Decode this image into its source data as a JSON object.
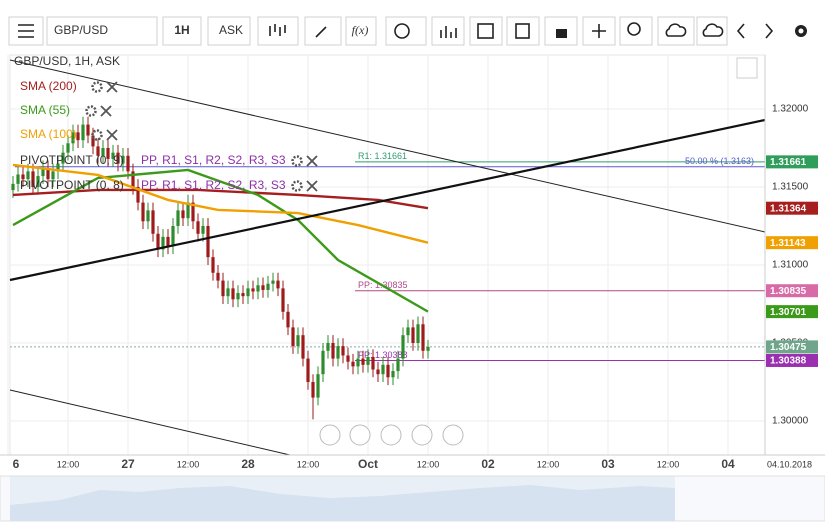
{
  "toolbar": {
    "symbol": "GBP/USD",
    "interval": "1H",
    "side": "ASK",
    "fx": "f(x)"
  },
  "chart_data": {
    "type": "candlestick",
    "title": "GBP/USD, 1H, ASK",
    "x": [
      1,
      2,
      3,
      4,
      5,
      6,
      7,
      8,
      9,
      10,
      11,
      12,
      13,
      14,
      15,
      16,
      17,
      18,
      19,
      20,
      21,
      22,
      23,
      24,
      25,
      26,
      27,
      28,
      29,
      30,
      31,
      32,
      33,
      34,
      35,
      36,
      37,
      38,
      39,
      40,
      41,
      42,
      43,
      44,
      45,
      46,
      47,
      48,
      49,
      50,
      51,
      52,
      53,
      54,
      55,
      56,
      57,
      58,
      59,
      60,
      61,
      62,
      63,
      64,
      65,
      66,
      67,
      68,
      69,
      70,
      71,
      72,
      73,
      74,
      75,
      76,
      77,
      78,
      79,
      80,
      81,
      82,
      83,
      84
    ],
    "candles": [
      [
        1.3148,
        1.3157,
        1.3143,
        1.3152
      ],
      [
        1.3152,
        1.3163,
        1.3147,
        1.3158
      ],
      [
        1.3158,
        1.3163,
        1.315,
        1.3155
      ],
      [
        1.3155,
        1.3165,
        1.315,
        1.316
      ],
      [
        1.316,
        1.3165,
        1.3145,
        1.315
      ],
      [
        1.315,
        1.3162,
        1.3145,
        1.3157
      ],
      [
        1.3157,
        1.3167,
        1.3152,
        1.3162
      ],
      [
        1.3162,
        1.3167,
        1.315,
        1.3155
      ],
      [
        1.3155,
        1.3165,
        1.315,
        1.316
      ],
      [
        1.316,
        1.317,
        1.3155,
        1.3165
      ],
      [
        1.3165,
        1.3177,
        1.316,
        1.3172
      ],
      [
        1.3172,
        1.3183,
        1.3167,
        1.3178
      ],
      [
        1.3178,
        1.319,
        1.3173,
        1.3185
      ],
      [
        1.3185,
        1.319,
        1.3175,
        1.318
      ],
      [
        1.318,
        1.3195,
        1.3175,
        1.319
      ],
      [
        1.319,
        1.3195,
        1.3178,
        1.3183
      ],
      [
        1.3183,
        1.3188,
        1.3171,
        1.3176
      ],
      [
        1.3176,
        1.3181,
        1.3165,
        1.317
      ],
      [
        1.317,
        1.318,
        1.3165,
        1.3175
      ],
      [
        1.3175,
        1.318,
        1.3163,
        1.3168
      ],
      [
        1.3168,
        1.3177,
        1.3163,
        1.3172
      ],
      [
        1.3172,
        1.3177,
        1.316,
        1.3165
      ],
      [
        1.3165,
        1.3175,
        1.316,
        1.317
      ],
      [
        1.317,
        1.3175,
        1.3155,
        1.316
      ],
      [
        1.316,
        1.3165,
        1.3145,
        1.315
      ],
      [
        1.315,
        1.3155,
        1.3135,
        1.314
      ],
      [
        1.314,
        1.3145,
        1.3123,
        1.3128
      ],
      [
        1.3128,
        1.314,
        1.3123,
        1.3135
      ],
      [
        1.3135,
        1.314,
        1.3115,
        1.312
      ],
      [
        1.312,
        1.3125,
        1.3105,
        1.311
      ],
      [
        1.311,
        1.3123,
        1.3105,
        1.3118
      ],
      [
        1.3118,
        1.3123,
        1.3107,
        1.3112
      ],
      [
        1.3112,
        1.313,
        1.3107,
        1.3125
      ],
      [
        1.3125,
        1.314,
        1.312,
        1.3135
      ],
      [
        1.3135,
        1.314,
        1.3125,
        1.313
      ],
      [
        1.313,
        1.3145,
        1.3125,
        1.314
      ],
      [
        1.314,
        1.3145,
        1.3123,
        1.3128
      ],
      [
        1.3128,
        1.3133,
        1.3115,
        1.312
      ],
      [
        1.312,
        1.313,
        1.3115,
        1.3125
      ],
      [
        1.3125,
        1.313,
        1.31,
        1.3105
      ],
      [
        1.3105,
        1.311,
        1.309,
        1.3095
      ],
      [
        1.3095,
        1.31,
        1.3085,
        1.309
      ],
      [
        1.309,
        1.3095,
        1.3075,
        1.308
      ],
      [
        1.308,
        1.309,
        1.3075,
        1.3085
      ],
      [
        1.3085,
        1.309,
        1.3073,
        1.3078
      ],
      [
        1.3078,
        1.3087,
        1.3073,
        1.3082
      ],
      [
        1.3082,
        1.3087,
        1.3075,
        1.308
      ],
      [
        1.308,
        1.309,
        1.3075,
        1.3085
      ],
      [
        1.3085,
        1.309,
        1.3078,
        1.3083
      ],
      [
        1.3083,
        1.3092,
        1.3078,
        1.3087
      ],
      [
        1.3087,
        1.3092,
        1.3079,
        1.3084
      ],
      [
        1.3084,
        1.3093,
        1.3079,
        1.3088
      ],
      [
        1.3088,
        1.3095,
        1.3083,
        1.309
      ],
      [
        1.309,
        1.3095,
        1.308,
        1.3085
      ],
      [
        1.3085,
        1.309,
        1.3065,
        1.307
      ],
      [
        1.307,
        1.3075,
        1.3055,
        1.306
      ],
      [
        1.306,
        1.3065,
        1.3043,
        1.3048
      ],
      [
        1.3048,
        1.306,
        1.3043,
        1.3055
      ],
      [
        1.3055,
        1.306,
        1.3035,
        1.304
      ],
      [
        1.304,
        1.3045,
        1.302,
        1.3025
      ],
      [
        1.3025,
        1.303,
        1.3001,
        1.3015
      ],
      [
        1.3015,
        1.3035,
        1.301,
        1.303
      ],
      [
        1.303,
        1.305,
        1.3025,
        1.3045
      ],
      [
        1.3045,
        1.3055,
        1.304,
        1.305
      ],
      [
        1.305,
        1.3055,
        1.3035,
        1.304
      ],
      [
        1.304,
        1.3053,
        1.3035,
        1.3048
      ],
      [
        1.3048,
        1.3053,
        1.3037,
        1.3042
      ],
      [
        1.3042,
        1.3047,
        1.3033,
        1.3038
      ],
      [
        1.3038,
        1.3043,
        1.303,
        1.3035
      ],
      [
        1.3035,
        1.3045,
        1.303,
        1.304
      ],
      [
        1.304,
        1.3045,
        1.3031,
        1.3036
      ],
      [
        1.3036,
        1.3046,
        1.3031,
        1.3041
      ],
      [
        1.3041,
        1.3046,
        1.3028,
        1.3033
      ],
      [
        1.3033,
        1.3038,
        1.3025,
        1.303
      ],
      [
        1.303,
        1.3041,
        1.3025,
        1.3036
      ],
      [
        1.3036,
        1.3041,
        1.3023,
        1.3028
      ],
      [
        1.3028,
        1.3037,
        1.3023,
        1.3032
      ],
      [
        1.3032,
        1.3045,
        1.3027,
        1.304
      ],
      [
        1.304,
        1.306,
        1.3035,
        1.3055
      ],
      [
        1.3055,
        1.3065,
        1.305,
        1.306
      ],
      [
        1.306,
        1.3065,
        1.3045,
        1.305
      ],
      [
        1.305,
        1.3067,
        1.3045,
        1.3062
      ],
      [
        1.3062,
        1.3067,
        1.304,
        1.3045
      ],
      [
        1.3045,
        1.3052,
        1.304,
        1.30475
      ]
    ],
    "up_color": "#2e8b2e",
    "down_color": "#9e1b1b",
    "series": [
      {
        "name": "SMA (200)",
        "color": "#a51f1f",
        "x": [
          1,
          18,
          38,
          58,
          74,
          84
        ],
        "values": [
          1.31449,
          1.31481,
          1.31481,
          1.31449,
          1.31417,
          1.31364
        ]
      },
      {
        "name": "SMA (55)",
        "color": "#3c9a1a",
        "x": [
          1,
          18,
          36,
          50,
          58,
          66,
          84
        ],
        "values": [
          1.31256,
          1.31558,
          1.31609,
          1.31449,
          1.31288,
          1.31032,
          1.30701
        ]
      },
      {
        "name": "SMA (100)",
        "color": "#f0a000",
        "x": [
          1,
          18,
          32,
          42,
          58,
          70,
          84
        ],
        "values": [
          1.31641,
          1.31577,
          1.31417,
          1.31353,
          1.31333,
          1.31256,
          1.31143
        ]
      }
    ],
    "pivot_legends": [
      {
        "name": "PIVOTPOINT (0, 9)",
        "levels": "PP, R1, S1, R2, S2, R3, S3"
      },
      {
        "name": "PIVOTPOINT (0, 8)",
        "levels": "PP, R1, S1, R2, S2, R3, S3"
      }
    ],
    "levels": [
      {
        "label": "R1: 1.31661",
        "value": 1.31661,
        "color": "#2e9e6e"
      },
      {
        "label": "50.00 % (1.3163)",
        "value": 1.3163,
        "color": "#5a5ad0"
      },
      {
        "label": "PP: 1.30835",
        "value": 1.30835,
        "color": "#b04a8a"
      },
      {
        "label": "PP: 1.30388",
        "value": 1.30388,
        "color": "#9a2fb0"
      }
    ],
    "price_tags": [
      {
        "value": 1.31661,
        "color": "#2e9e5a"
      },
      {
        "value": 1.31364,
        "color": "#a51f1f"
      },
      {
        "value": 1.31143,
        "color": "#f0a000"
      },
      {
        "value": 1.30835,
        "color": "#d86aa8"
      },
      {
        "value": 1.30701,
        "color": "#3c9a1a"
      },
      {
        "value": 1.30475,
        "color": "#6fa58a"
      },
      {
        "value": 1.30388,
        "color": "#9a2fb0"
      }
    ],
    "current_price": 1.30475,
    "xlim": [
      0.4,
      151.4
    ],
    "ylim": [
      1.29782,
      1.32346
    ],
    "xticks": [
      {
        "value": 0,
        "label": "6"
      },
      {
        "value": 12,
        "label": "12:00"
      },
      {
        "value": 24,
        "label": "27"
      },
      {
        "value": 36,
        "label": "12:00"
      },
      {
        "value": 48,
        "label": "28"
      },
      {
        "value": 60,
        "label": "12:00"
      },
      {
        "value": 72,
        "label": "Oct"
      },
      {
        "value": 84,
        "label": "12:00"
      },
      {
        "value": 96,
        "label": "02"
      },
      {
        "value": 108,
        "label": "12:00"
      },
      {
        "value": 120,
        "label": "03"
      },
      {
        "value": 132,
        "label": "12:00"
      },
      {
        "value": 144,
        "label": "04"
      }
    ],
    "yticks": [
      {
        "value": 1.3,
        "label": "1.30000"
      },
      {
        "value": 1.305,
        "label": "1.30500"
      },
      {
        "value": 1.31,
        "label": "1.31000"
      },
      {
        "value": 1.315,
        "label": "1.31500"
      },
      {
        "value": 1.32,
        "label": "1.32000"
      }
    ],
    "date_label": "04.10.2018",
    "grid": true
  }
}
